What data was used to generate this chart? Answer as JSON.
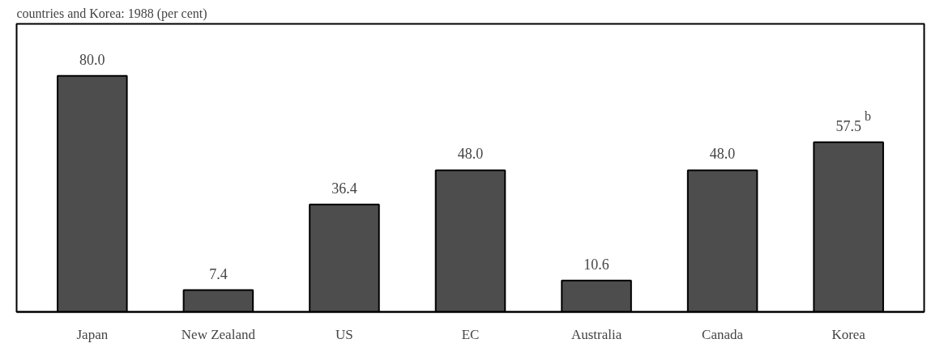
{
  "chart_data": {
    "type": "bar",
    "title": "countries and Korea: 1988 (per cent)",
    "categories": [
      "Japan",
      "New Zealand",
      "US",
      "EC",
      "Australia",
      "Canada",
      "Korea"
    ],
    "values": [
      80.0,
      7.4,
      36.4,
      48.0,
      10.6,
      48.0,
      57.5
    ],
    "value_labels": [
      "80.0",
      "7.4",
      "36.4",
      "48.0",
      "10.6",
      "48.0",
      "57.5$^{b}$"
    ],
    "color": "#4d4d4d"
  }
}
